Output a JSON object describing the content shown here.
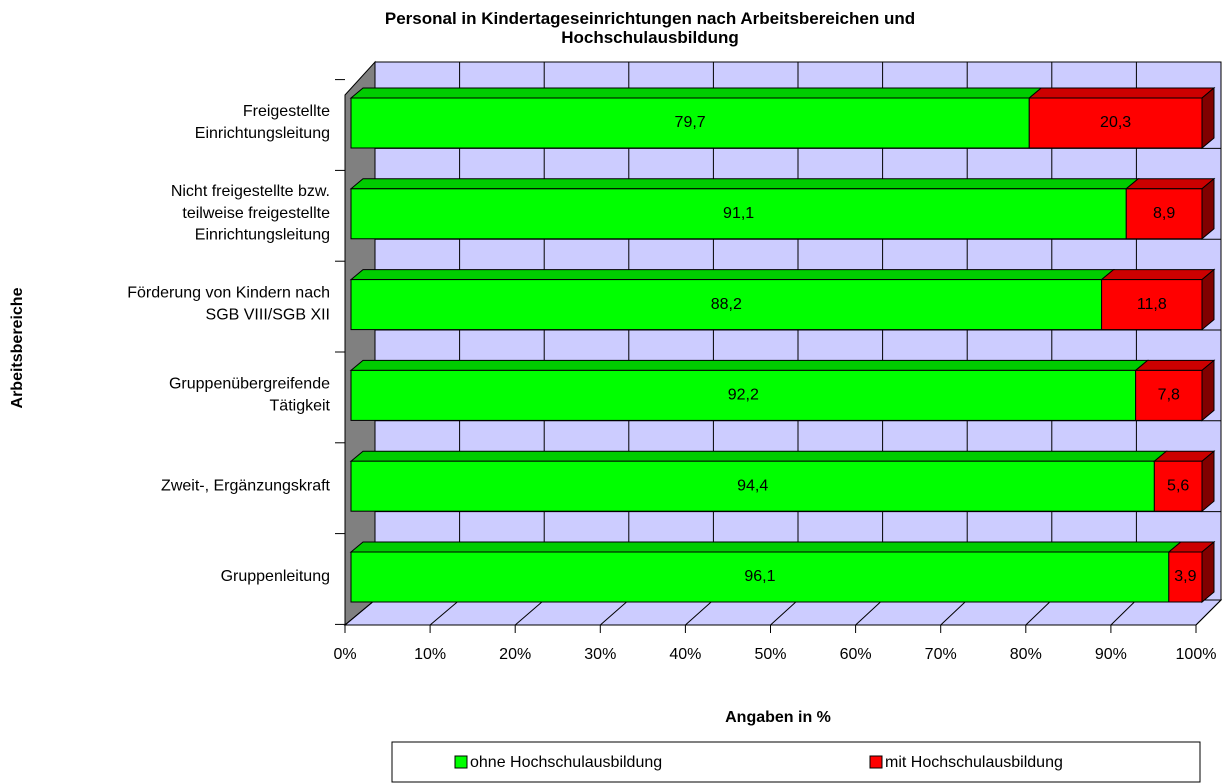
{
  "chart_data": {
    "type": "stacked-bar-3d-horizontal",
    "title": "Personal in Kindertageseinrichtungen nach Arbeitsbereichen und\nHochschulausbildung",
    "x_label": "Angaben in %",
    "y_label": "Arbeitsbereiche",
    "categories": [
      "Freigestellte\nEinrichtungsleitung",
      "Nicht freigestellte bzw.\nteilweise freigestellte\nEinrichtungsleitung",
      "Förderung von Kindern nach\nSGB VIII/SGB XII",
      "Gruppenübergreifende\nTätigkeit",
      "Zweit-, Ergänzungskraft",
      "Gruppenleitung"
    ],
    "series": [
      {
        "name": "ohne Hochschulausbildung",
        "color": "#00ff00",
        "top_color": "#00cc00",
        "side_color": "#008000",
        "values": [
          79.7,
          91.1,
          88.2,
          92.2,
          94.4,
          96.1
        ],
        "value_labels": [
          "79,7",
          "91,1",
          "88,2",
          "92,2",
          "94,4",
          "96,1"
        ]
      },
      {
        "name": "mit Hochschulausbildung",
        "color": "#ff0000",
        "top_color": "#cc0000",
        "side_color": "#800000",
        "values": [
          20.3,
          8.9,
          11.8,
          7.8,
          5.6,
          3.9
        ],
        "value_labels": [
          "20,3",
          "8,9",
          "11,8",
          "7,8",
          "5,6",
          "3,9"
        ]
      }
    ],
    "xlim": [
      0,
      100
    ],
    "xticks": [
      {
        "value": 0,
        "label": "0%"
      },
      {
        "value": 10,
        "label": "10%"
      },
      {
        "value": 20,
        "label": "20%"
      },
      {
        "value": 30,
        "label": "30%"
      },
      {
        "value": 40,
        "label": "40%"
      },
      {
        "value": 50,
        "label": "50%"
      },
      {
        "value": 60,
        "label": "60%"
      },
      {
        "value": 70,
        "label": "70%"
      },
      {
        "value": 80,
        "label": "80%"
      },
      {
        "value": 90,
        "label": "90%"
      },
      {
        "value": 100,
        "label": "100%"
      }
    ],
    "grid": true,
    "legend": "bottom"
  }
}
